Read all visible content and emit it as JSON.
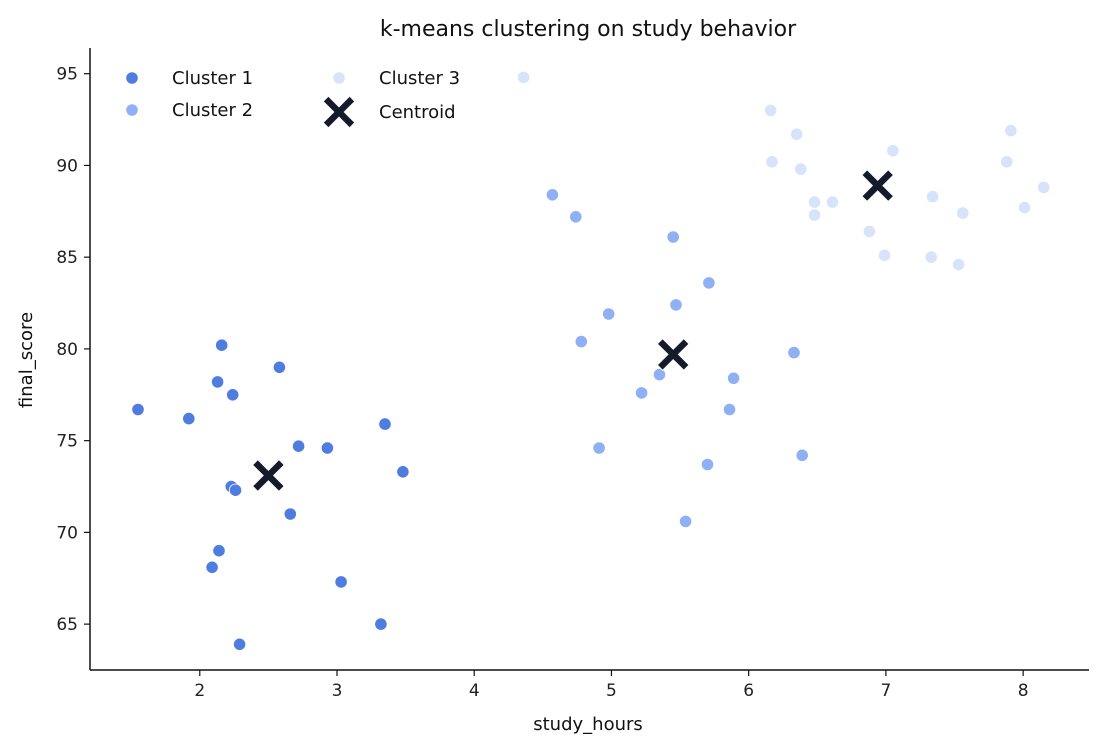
{
  "chart_data": {
    "type": "scatter",
    "title": "k-means clustering on study behavior",
    "xlabel": "study_hours",
    "ylabel": "final_score",
    "xlim": [
      1.2,
      8.48
    ],
    "ylim": [
      62.5,
      96.4
    ],
    "xticks": [
      2,
      3,
      4,
      5,
      6,
      7,
      8
    ],
    "yticks": [
      65,
      70,
      75,
      80,
      85,
      90,
      95
    ],
    "grid": false,
    "legend": "top-left",
    "series": [
      {
        "name": "Cluster 1",
        "color": "#4f7ddf",
        "points": [
          [
            1.55,
            76.7
          ],
          [
            1.92,
            76.2
          ],
          [
            2.16,
            80.2
          ],
          [
            2.13,
            78.2
          ],
          [
            2.24,
            77.5
          ],
          [
            2.58,
            79.0
          ],
          [
            2.23,
            72.5
          ],
          [
            2.26,
            72.3
          ],
          [
            2.72,
            74.7
          ],
          [
            2.93,
            74.6
          ],
          [
            3.35,
            75.9
          ],
          [
            3.48,
            73.3
          ],
          [
            2.66,
            71.0
          ],
          [
            2.14,
            69.0
          ],
          [
            2.09,
            68.1
          ],
          [
            3.03,
            67.3
          ],
          [
            3.32,
            65.0
          ],
          [
            2.29,
            63.9
          ]
        ]
      },
      {
        "name": "Cluster 2",
        "color": "#8fb0f5",
        "points": [
          [
            4.57,
            88.4
          ],
          [
            4.74,
            87.2
          ],
          [
            5.45,
            86.1
          ],
          [
            5.71,
            83.6
          ],
          [
            5.47,
            82.4
          ],
          [
            4.98,
            81.9
          ],
          [
            4.78,
            80.4
          ],
          [
            6.33,
            79.8
          ],
          [
            5.35,
            78.6
          ],
          [
            5.89,
            78.4
          ],
          [
            5.22,
            77.6
          ],
          [
            5.86,
            76.7
          ],
          [
            4.91,
            74.6
          ],
          [
            6.39,
            74.2
          ],
          [
            5.7,
            73.7
          ],
          [
            5.54,
            70.6
          ]
        ]
      },
      {
        "name": "Cluster 3",
        "color": "#d6e3fb",
        "points": [
          [
            4.36,
            94.8
          ],
          [
            6.16,
            93.0
          ],
          [
            6.35,
            91.7
          ],
          [
            7.91,
            91.9
          ],
          [
            6.17,
            90.2
          ],
          [
            6.38,
            89.8
          ],
          [
            7.05,
            90.8
          ],
          [
            7.88,
            90.2
          ],
          [
            8.15,
            88.8
          ],
          [
            7.34,
            88.3
          ],
          [
            6.48,
            88.0
          ],
          [
            6.61,
            88.0
          ],
          [
            6.48,
            87.3
          ],
          [
            7.56,
            87.4
          ],
          [
            8.01,
            87.7
          ],
          [
            6.88,
            86.4
          ],
          [
            6.99,
            85.1
          ],
          [
            7.33,
            85.0
          ],
          [
            7.53,
            84.6
          ]
        ]
      }
    ],
    "centroids": {
      "name": "Centroid",
      "color": "#151b2b",
      "points": [
        [
          2.5,
          73.1
        ],
        [
          5.45,
          79.7
        ],
        [
          6.94,
          88.9
        ]
      ]
    }
  }
}
